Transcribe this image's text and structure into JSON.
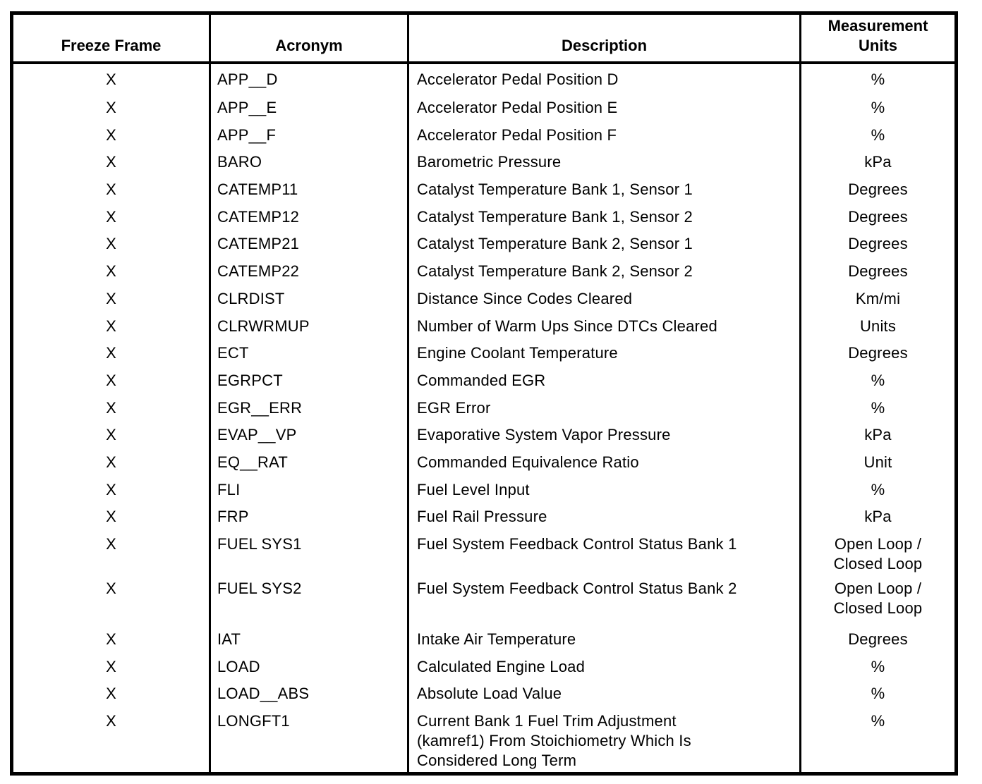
{
  "table": {
    "columns": [
      {
        "key": "freeze_frame",
        "label": "Freeze Frame"
      },
      {
        "key": "acronym",
        "label": "Acronym"
      },
      {
        "key": "description",
        "label": "Description"
      },
      {
        "key": "units",
        "label": [
          "Measurement",
          "Units"
        ]
      }
    ],
    "rows": [
      {
        "freeze_frame": "X",
        "acronym": "APP__D",
        "description": "Accelerator Pedal Position D",
        "units": "%"
      },
      {
        "freeze_frame": "X",
        "acronym": "APP__E",
        "description": "Accelerator Pedal Position E",
        "units": "%"
      },
      {
        "freeze_frame": "X",
        "acronym": "APP__F",
        "description": "Accelerator Pedal Position F",
        "units": "%"
      },
      {
        "freeze_frame": "X",
        "acronym": "BARO",
        "description": "Barometric Pressure",
        "units": "kPa"
      },
      {
        "freeze_frame": "X",
        "acronym": "CATEMP11",
        "description": "Catalyst Temperature Bank 1, Sensor 1",
        "units": "Degrees"
      },
      {
        "freeze_frame": "X",
        "acronym": "CATEMP12",
        "description": "Catalyst Temperature Bank 1, Sensor 2",
        "units": "Degrees"
      },
      {
        "freeze_frame": "X",
        "acronym": "CATEMP21",
        "description": "Catalyst Temperature Bank 2, Sensor 1",
        "units": "Degrees"
      },
      {
        "freeze_frame": "X",
        "acronym": "CATEMP22",
        "description": "Catalyst Temperature Bank 2, Sensor 2",
        "units": "Degrees"
      },
      {
        "freeze_frame": "X",
        "acronym": "CLRDIST",
        "description": "Distance Since Codes Cleared",
        "units": "Km/mi"
      },
      {
        "freeze_frame": "X",
        "acronym": "CLRWRMUP",
        "description": "Number of Warm Ups Since DTCs Cleared",
        "units": "Units"
      },
      {
        "freeze_frame": "X",
        "acronym": "ECT",
        "description": "Engine Coolant Temperature",
        "units": "Degrees"
      },
      {
        "freeze_frame": "X",
        "acronym": "EGRPCT",
        "description": "Commanded EGR",
        "units": "%"
      },
      {
        "freeze_frame": "X",
        "acronym": "EGR__ERR",
        "description": "EGR Error",
        "units": "%"
      },
      {
        "freeze_frame": "X",
        "acronym": "EVAP__VP",
        "description": "Evaporative System Vapor Pressure",
        "units": "kPa"
      },
      {
        "freeze_frame": "X",
        "acronym": "EQ__RAT",
        "description": "Commanded Equivalence Ratio",
        "units": "Unit"
      },
      {
        "freeze_frame": "X",
        "acronym": "FLI",
        "description": "Fuel Level Input",
        "units": "%"
      },
      {
        "freeze_frame": "X",
        "acronym": "FRP",
        "description": "Fuel Rail Pressure",
        "units": "kPa"
      },
      {
        "freeze_frame": "X",
        "acronym": "FUEL SYS1",
        "description": "Fuel System Feedback Control Status Bank 1",
        "units": [
          "Open Loop /",
          "Closed Loop"
        ]
      },
      {
        "freeze_frame": "X",
        "acronym": "FUEL SYS2",
        "description": "Fuel System Feedback Control Status Bank 2",
        "units": [
          "Open Loop /",
          "Closed Loop"
        ]
      },
      {
        "freeze_frame": "X",
        "acronym": "IAT",
        "description": "Intake Air Temperature",
        "units": "Degrees"
      },
      {
        "freeze_frame": "X",
        "acronym": "LOAD",
        "description": "Calculated Engine Load",
        "units": "%"
      },
      {
        "freeze_frame": "X",
        "acronym": "LOAD__ABS",
        "description": "Absolute Load Value",
        "units": "%"
      },
      {
        "freeze_frame": "X",
        "acronym": "LONGFT1",
        "description": [
          "Current Bank 1 Fuel Trim Adjustment",
          "(kamref1) From Stoichiometry Which Is",
          "Considered Long Term"
        ],
        "units": "%"
      }
    ]
  }
}
